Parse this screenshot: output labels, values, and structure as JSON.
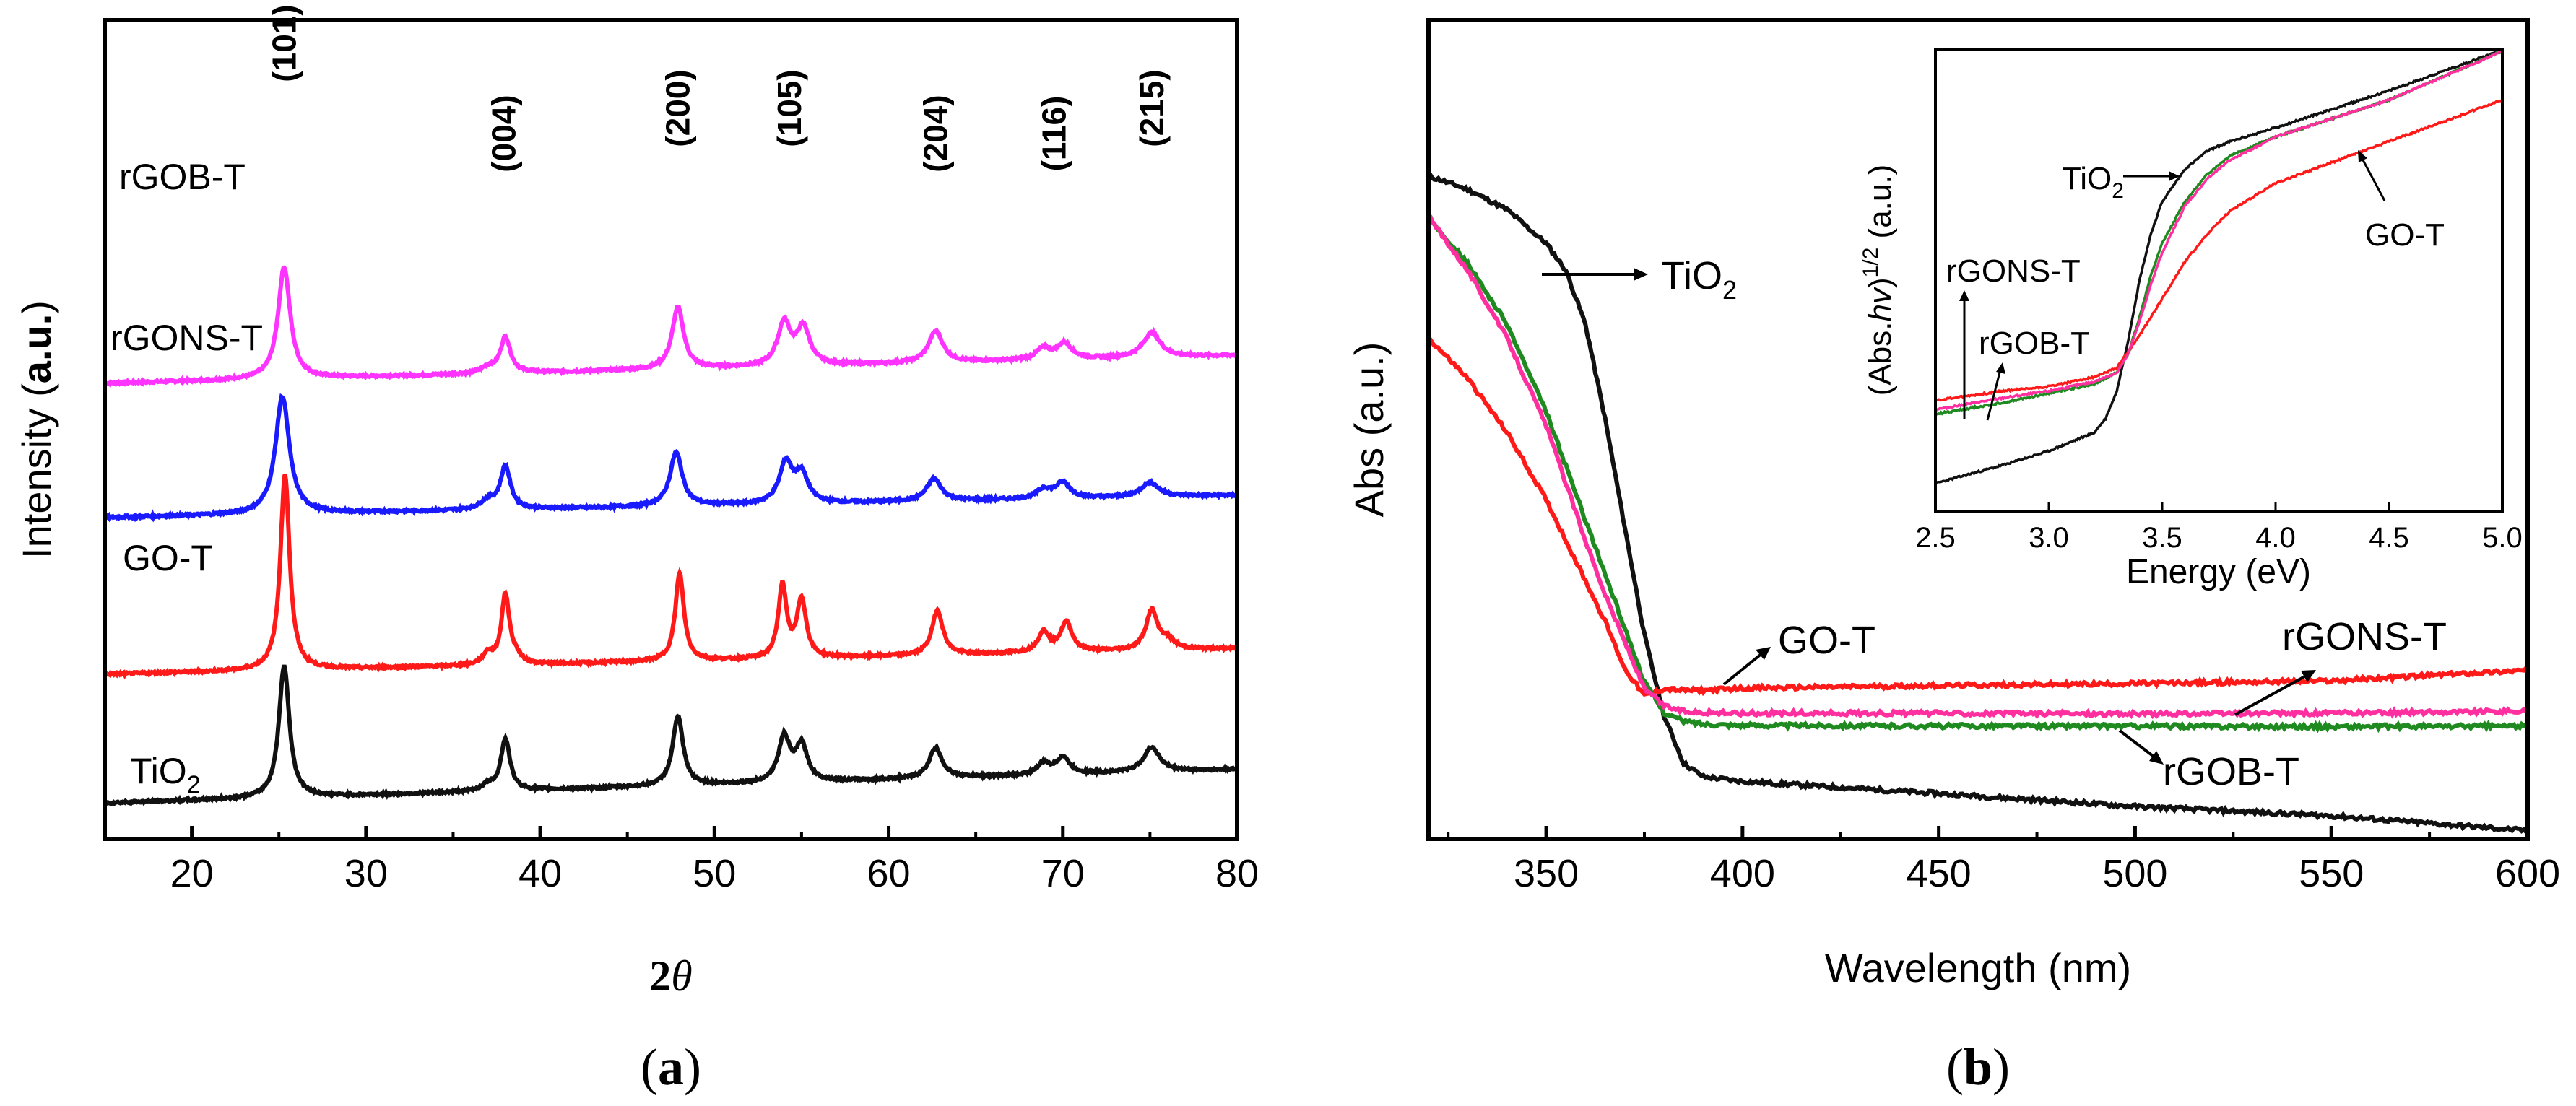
{
  "colors": {
    "rGOB-T_a": "#ff33ff",
    "rGONS-T_a": "#1a1aff",
    "GO-T": "#ff1a1a",
    "TiO2": "#111111",
    "rGOB-T_b": "#1f8a1f",
    "rGONS-T_b": "#ff2fa0"
  },
  "panels": {
    "a": {
      "caption_open": "(",
      "caption_letter": "a",
      "caption_close": ")",
      "xlabel_num": "2",
      "xlabel_sym": "θ",
      "ylabel_pre": "Intensity (",
      "ylabel_bold": "a.u.",
      "ylabel_post": ")"
    },
    "b": {
      "caption_open": "(",
      "caption_letter": "b",
      "caption_close": ")"
    }
  },
  "chart_data": [
    {
      "type": "line",
      "panel": "a",
      "title": "",
      "xlabel": "2θ",
      "ylabel": "Intensity (a.u.)",
      "xlim": [
        15,
        80
      ],
      "xticks": [
        20,
        30,
        40,
        50,
        60,
        70,
        80
      ],
      "yticks": [],
      "peaks": [
        {
          "pos": 25.3,
          "label": "(101)"
        },
        {
          "pos": 37.9,
          "label": "(004)"
        },
        {
          "pos": 47.9,
          "label": "(200)"
        },
        {
          "pos": 54.3,
          "label": "(105)"
        },
        {
          "pos": 62.7,
          "label": "(204)"
        },
        {
          "pos": 69.5,
          "label": "(116)"
        },
        {
          "pos": 75.1,
          "label": "(215)"
        }
      ],
      "series": [
        {
          "name": "rGOB-T",
          "label_main": "rGOB-T",
          "label_sub": "",
          "offset": 3.75,
          "baseline": [
            0.05,
            0.3
          ],
          "peaks": [
            [
              25.3,
              1.0,
              0.42
            ],
            [
              37.0,
              0.05,
              0.5
            ],
            [
              38.0,
              0.32,
              0.35
            ],
            [
              47.9,
              0.55,
              0.4
            ],
            [
              54.0,
              0.38,
              0.45
            ],
            [
              55.1,
              0.33,
              0.45
            ],
            [
              62.7,
              0.28,
              0.5
            ],
            [
              68.9,
              0.1,
              0.5
            ],
            [
              70.1,
              0.14,
              0.5
            ],
            [
              75.1,
              0.22,
              0.6
            ]
          ]
        },
        {
          "name": "rGONS-T",
          "label_main": "rGONS-T",
          "label_sub": "",
          "offset": 2.55,
          "baseline": [
            0.05,
            0.25
          ],
          "peaks": [
            [
              25.2,
              1.05,
              0.48
            ],
            [
              37.0,
              0.08,
              0.5
            ],
            [
              38.0,
              0.38,
              0.35
            ],
            [
              47.8,
              0.48,
              0.42
            ],
            [
              54.1,
              0.36,
              0.45
            ],
            [
              55.0,
              0.25,
              0.45
            ],
            [
              62.6,
              0.2,
              0.5
            ],
            [
              68.9,
              0.08,
              0.5
            ],
            [
              70.0,
              0.14,
              0.5
            ],
            [
              75.0,
              0.13,
              0.6
            ]
          ]
        },
        {
          "name": "GO-T",
          "label_main": "GO-T",
          "label_sub": "",
          "offset": 1.15,
          "baseline": [
            0.05,
            0.28
          ],
          "peaks": [
            [
              25.35,
              1.75,
              0.32
            ],
            [
              37.0,
              0.1,
              0.35
            ],
            [
              38.0,
              0.62,
              0.28
            ],
            [
              38.6,
              0.06,
              0.35
            ],
            [
              48.0,
              0.78,
              0.3
            ],
            [
              53.9,
              0.65,
              0.28
            ],
            [
              55.0,
              0.52,
              0.32
            ],
            [
              62.8,
              0.4,
              0.38
            ],
            [
              68.9,
              0.18,
              0.4
            ],
            [
              70.2,
              0.26,
              0.4
            ],
            [
              75.1,
              0.35,
              0.4
            ],
            [
              76.0,
              0.08,
              0.5
            ]
          ]
        },
        {
          "name": "TiO2",
          "label_main": "TiO",
          "label_sub": "2",
          "offset": 0.0,
          "baseline": [
            0.05,
            0.35
          ],
          "peaks": [
            [
              25.3,
              1.18,
              0.36
            ],
            [
              37.0,
              0.05,
              0.45
            ],
            [
              38.0,
              0.46,
              0.32
            ],
            [
              47.9,
              0.62,
              0.36
            ],
            [
              54.0,
              0.4,
              0.4
            ],
            [
              55.0,
              0.32,
              0.4
            ],
            [
              62.7,
              0.27,
              0.45
            ],
            [
              68.9,
              0.1,
              0.45
            ],
            [
              70.0,
              0.15,
              0.45
            ],
            [
              75.1,
              0.22,
              0.55
            ]
          ]
        }
      ]
    },
    {
      "type": "line",
      "panel": "b",
      "title": "",
      "xlabel": "Wavelength (nm)",
      "ylabel": "Abs (a.u.)",
      "xlim": [
        320,
        600
      ],
      "ylim": [
        0,
        1.0
      ],
      "xticks": [
        350,
        400,
        450,
        500,
        550,
        600
      ],
      "yticks": [],
      "annotations": [
        {
          "series": "TiO2",
          "main": "TiO",
          "sub": "2"
        },
        {
          "series": "GO-T",
          "main": "GO-T",
          "sub": ""
        },
        {
          "series": "rGONS-T",
          "main": "rGONS-T",
          "sub": ""
        },
        {
          "series": "rGOB-T",
          "main": "rGOB-T",
          "sub": ""
        }
      ],
      "series": [
        {
          "name": "TiO2",
          "x": [
            320,
            330,
            340,
            350,
            355,
            360,
            365,
            370,
            375,
            380,
            385,
            390,
            400,
            450,
            500,
            550,
            600
          ],
          "y": [
            0.98,
            0.96,
            0.93,
            0.88,
            0.84,
            0.76,
            0.62,
            0.46,
            0.3,
            0.18,
            0.11,
            0.09,
            0.083,
            0.065,
            0.046,
            0.032,
            0.01
          ]
        },
        {
          "name": "GO-T",
          "x": [
            320,
            330,
            340,
            350,
            360,
            365,
            370,
            375,
            380,
            385,
            390,
            400,
            450,
            500,
            550,
            600
          ],
          "y": [
            0.74,
            0.68,
            0.6,
            0.5,
            0.38,
            0.32,
            0.25,
            0.21,
            0.22,
            0.218,
            0.218,
            0.221,
            0.225,
            0.228,
            0.232,
            0.248
          ]
        },
        {
          "name": "rGONS-T",
          "x": [
            320,
            330,
            340,
            350,
            360,
            365,
            370,
            375,
            380,
            385,
            390,
            400,
            450,
            500,
            550,
            600
          ],
          "y": [
            0.92,
            0.84,
            0.74,
            0.61,
            0.44,
            0.36,
            0.29,
            0.22,
            0.195,
            0.187,
            0.185,
            0.184,
            0.184,
            0.183,
            0.184,
            0.187
          ]
        },
        {
          "name": "rGOB-T",
          "x": [
            320,
            330,
            340,
            350,
            360,
            365,
            370,
            375,
            380,
            385,
            390,
            400,
            450,
            500,
            550,
            600
          ],
          "y": [
            0.92,
            0.85,
            0.76,
            0.63,
            0.47,
            0.39,
            0.31,
            0.23,
            0.185,
            0.172,
            0.168,
            0.166,
            0.165,
            0.165,
            0.164,
            0.165
          ]
        }
      ]
    },
    {
      "type": "line",
      "panel": "b-inset",
      "title": "",
      "xlabel": "Energy (eV)",
      "ylabel_pre": "(Abs.",
      "ylabel_h": "hv",
      "ylabel_mid": ")",
      "ylabel_sup": "1/2",
      "ylabel_post": " (a.u.)",
      "ylabel": "(Abs.hv)^1/2 (a.u.)",
      "xlim": [
        2.5,
        5.0
      ],
      "ylim": [
        0,
        1.0
      ],
      "xticks": [
        "2.5",
        "3.0",
        "3.5",
        "4.0",
        "4.5",
        "5.0"
      ],
      "annotations": [
        {
          "series": "TiO2",
          "main": "TiO",
          "sub": "2"
        },
        {
          "series": "GO-T",
          "main": "GO-T",
          "sub": ""
        },
        {
          "series": "rGONS-T",
          "main": "rGONS-T",
          "sub": ""
        },
        {
          "series": "rGOB-T",
          "main": "rGOB-T",
          "sub": ""
        }
      ],
      "series": [
        {
          "name": "TiO2",
          "x": [
            2.5,
            2.8,
            3.0,
            3.1,
            3.2,
            3.25,
            3.3,
            3.35,
            3.4,
            3.45,
            3.5,
            3.6,
            3.7,
            3.8,
            4.0,
            4.5,
            5.0
          ],
          "y": [
            0.06,
            0.1,
            0.13,
            0.15,
            0.17,
            0.2,
            0.26,
            0.37,
            0.5,
            0.6,
            0.67,
            0.74,
            0.78,
            0.8,
            0.83,
            0.91,
            0.998
          ]
        },
        {
          "name": "rGONS-T",
          "x": [
            2.5,
            2.8,
            3.0,
            3.2,
            3.3,
            3.35,
            3.4,
            3.45,
            3.5,
            3.6,
            3.7,
            3.8,
            4.0,
            4.5,
            5.0
          ],
          "y": [
            0.22,
            0.245,
            0.26,
            0.28,
            0.3,
            0.34,
            0.41,
            0.49,
            0.56,
            0.66,
            0.72,
            0.76,
            0.81,
            0.89,
            0.995
          ]
        },
        {
          "name": "rGOB-T",
          "x": [
            2.5,
            2.8,
            3.0,
            3.2,
            3.3,
            3.35,
            3.4,
            3.45,
            3.5,
            3.6,
            3.7,
            3.8,
            4.0,
            4.5,
            5.0
          ],
          "y": [
            0.21,
            0.235,
            0.255,
            0.275,
            0.3,
            0.34,
            0.42,
            0.51,
            0.58,
            0.67,
            0.73,
            0.77,
            0.81,
            0.89,
            0.996
          ]
        },
        {
          "name": "GO-T",
          "x": [
            2.5,
            2.8,
            3.0,
            3.2,
            3.3,
            3.4,
            3.5,
            3.6,
            3.7,
            3.8,
            4.0,
            4.5,
            5.0
          ],
          "y": [
            0.24,
            0.26,
            0.27,
            0.29,
            0.31,
            0.38,
            0.46,
            0.54,
            0.6,
            0.65,
            0.71,
            0.8,
            0.89
          ]
        }
      ]
    }
  ]
}
